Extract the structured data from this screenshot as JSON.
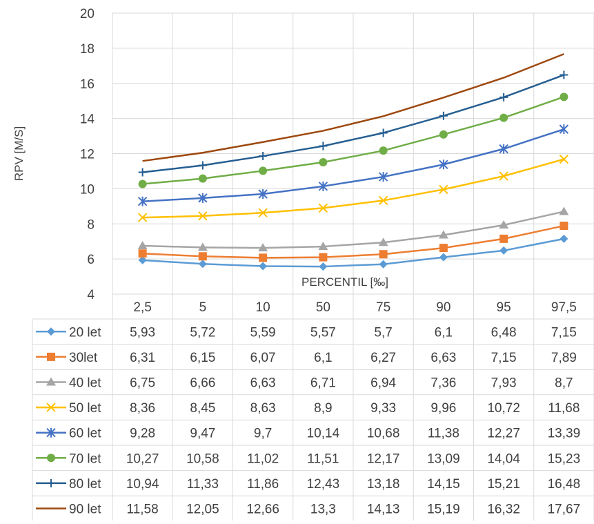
{
  "chart_data": {
    "type": "line",
    "title": "",
    "xlabel": "PERCENTIL [‰]",
    "ylabel": "RPV [M/S]",
    "ylim": [
      4,
      20
    ],
    "yticks": [
      4,
      6,
      8,
      10,
      12,
      14,
      16,
      18,
      20
    ],
    "grid": true,
    "legend": "data-table-below",
    "categories": [
      "2,5",
      "5",
      "10",
      "50",
      "75",
      "90",
      "95",
      "97,5"
    ],
    "series": [
      {
        "name": "20 let",
        "color": "#5B9BD5",
        "marker": "diamond",
        "values": [
          5.93,
          5.72,
          5.59,
          5.57,
          5.7,
          6.1,
          6.48,
          7.15
        ],
        "labels": [
          "5,93",
          "5,72",
          "5,59",
          "5,57",
          "5,7",
          "6,1",
          "6,48",
          "7,15"
        ]
      },
      {
        "name": "30let",
        "color": "#ED7D31",
        "marker": "square",
        "values": [
          6.31,
          6.15,
          6.07,
          6.1,
          6.27,
          6.63,
          7.15,
          7.89
        ],
        "labels": [
          "6,31",
          "6,15",
          "6,07",
          "6,1",
          "6,27",
          "6,63",
          "7,15",
          "7,89"
        ]
      },
      {
        "name": "40 let",
        "color": "#A5A5A5",
        "marker": "triangle",
        "values": [
          6.75,
          6.66,
          6.63,
          6.71,
          6.94,
          7.36,
          7.93,
          8.7
        ],
        "labels": [
          "6,75",
          "6,66",
          "6,63",
          "6,71",
          "6,94",
          "7,36",
          "7,93",
          "8,7"
        ]
      },
      {
        "name": "50 let",
        "color": "#FFC000",
        "marker": "x",
        "values": [
          8.36,
          8.45,
          8.63,
          8.9,
          9.33,
          9.96,
          10.72,
          11.68
        ],
        "labels": [
          "8,36",
          "8,45",
          "8,63",
          "8,9",
          "9,33",
          "9,96",
          "10,72",
          "11,68"
        ]
      },
      {
        "name": "60 let",
        "color": "#4472C4",
        "marker": "star",
        "values": [
          9.28,
          9.47,
          9.7,
          10.14,
          10.68,
          11.38,
          12.27,
          13.39
        ],
        "labels": [
          "9,28",
          "9,47",
          "9,7",
          "10,14",
          "10,68",
          "11,38",
          "12,27",
          "13,39"
        ]
      },
      {
        "name": "70 let",
        "color": "#70AD47",
        "marker": "circle",
        "values": [
          10.27,
          10.58,
          11.02,
          11.51,
          12.17,
          13.09,
          14.04,
          15.23
        ],
        "labels": [
          "10,27",
          "10,58",
          "11,02",
          "11,51",
          "12,17",
          "13,09",
          "14,04",
          "15,23"
        ]
      },
      {
        "name": "80 let",
        "color": "#255E91",
        "marker": "plus",
        "values": [
          10.94,
          11.33,
          11.86,
          12.43,
          13.18,
          14.15,
          15.21,
          16.48
        ],
        "labels": [
          "10,94",
          "11,33",
          "11,86",
          "12,43",
          "13,18",
          "14,15",
          "15,21",
          "16,48"
        ]
      },
      {
        "name": "90 let",
        "color": "#9E480E",
        "marker": "none",
        "values": [
          11.58,
          12.05,
          12.66,
          13.3,
          14.13,
          15.19,
          16.32,
          17.67
        ],
        "labels": [
          "11,58",
          "12,05",
          "12,66",
          "13,3",
          "14,13",
          "15,19",
          "16,32",
          "17,67"
        ]
      }
    ]
  }
}
